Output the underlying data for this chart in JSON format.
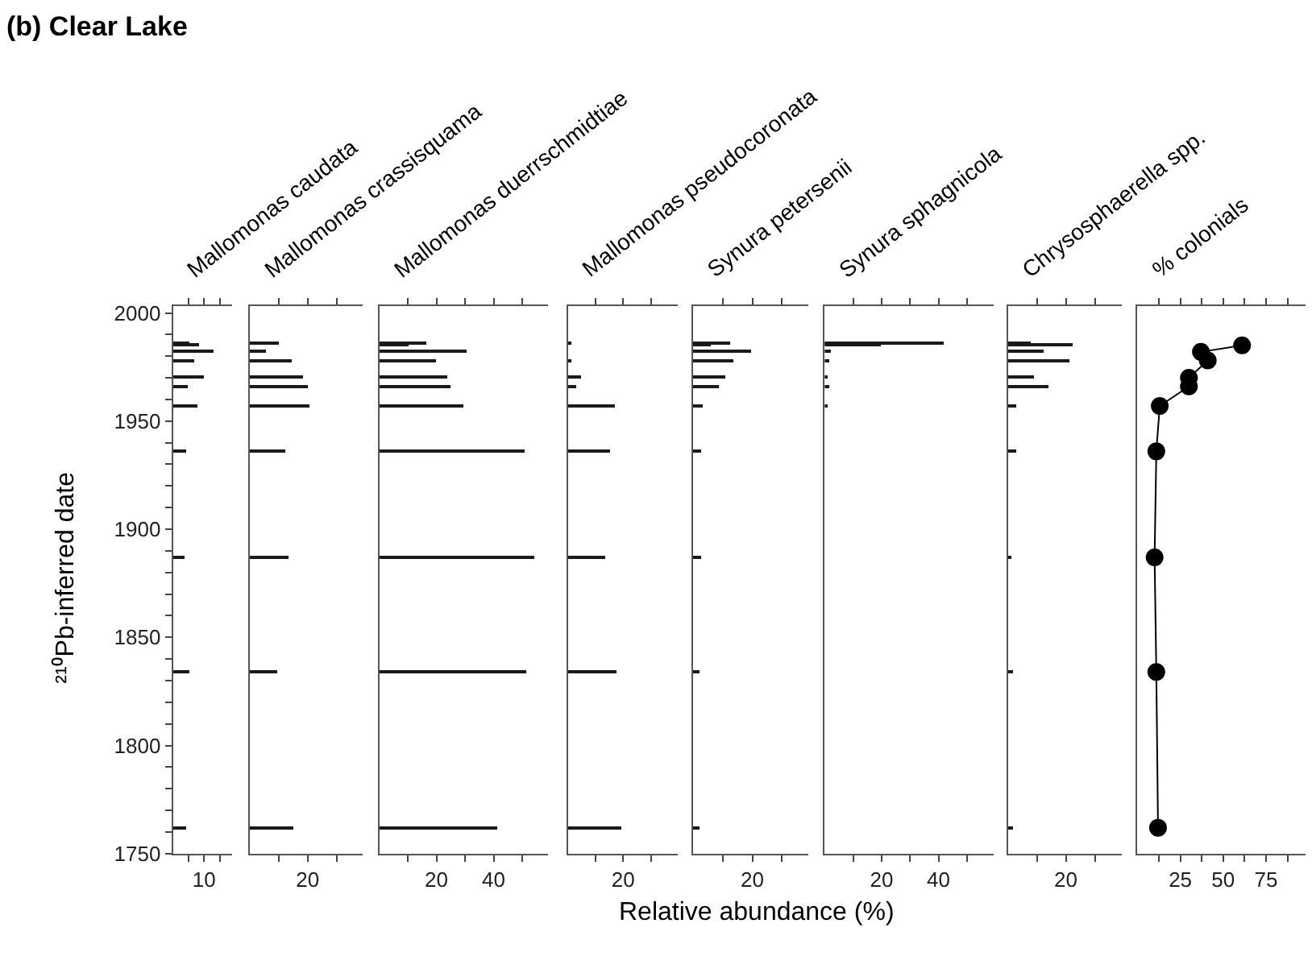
{
  "chart_data": [
    {
      "type": "bar",
      "orientation": "horizontal",
      "title": "Mallomonas caudata",
      "annotations": [
        "(b) Clear Lake"
      ],
      "ylabel": "²¹⁰Pb-inferred date",
      "x": [
        1986,
        1985,
        1982,
        1978,
        1970,
        1966,
        1957,
        1936,
        1887,
        1834,
        1762
      ],
      "values": [
        5.2,
        8.2,
        12.9,
        6.9,
        9.6,
        4.8,
        7.9,
        4.1,
        3.5,
        5.2,
        4.0
      ],
      "color": "#1a1a1a",
      "xlim": [
        0,
        19
      ],
      "xticks": [
        {
          "value": 5,
          "label": null
        },
        10,
        {
          "value": 15,
          "label": null
        }
      ],
      "ylim": [
        1750,
        2003
      ],
      "yticks": [
        1750,
        {
          "value": 1760,
          "label": null
        },
        {
          "value": 1770,
          "label": null
        },
        {
          "value": 1780,
          "label": null
        },
        {
          "value": 1790,
          "label": null
        },
        1800,
        {
          "value": 1810,
          "label": null
        },
        {
          "value": 1820,
          "label": null
        },
        {
          "value": 1830,
          "label": null
        },
        {
          "value": 1840,
          "label": null
        },
        1850,
        {
          "value": 1860,
          "label": null
        },
        {
          "value": 1870,
          "label": null
        },
        {
          "value": 1880,
          "label": null
        },
        {
          "value": 1890,
          "label": null
        },
        1900,
        {
          "value": 1910,
          "label": null
        },
        {
          "value": 1920,
          "label": null
        },
        {
          "value": 1930,
          "label": null
        },
        {
          "value": 1940,
          "label": null
        },
        1950,
        {
          "value": 1960,
          "label": null
        },
        {
          "value": 1970,
          "label": null
        },
        {
          "value": 1980,
          "label": null
        },
        {
          "value": 1990,
          "label": null
        },
        2000
      ]
    },
    {
      "type": "bar",
      "orientation": "horizontal",
      "title": "Mallomonas crassisquama",
      "x": [
        1986,
        1985,
        1982,
        1978,
        1970,
        1966,
        1957,
        1936,
        1887,
        1834,
        1762
      ],
      "values": [
        9.9,
        null,
        5.8,
        14.7,
        18.5,
        20.2,
        20.6,
        12.2,
        13.2,
        9.7,
        15.3
      ],
      "color": "#1a1a1a",
      "xlim": [
        0,
        39
      ],
      "xticks": [
        {
          "value": 10,
          "label": null
        },
        20,
        {
          "value": 30,
          "label": null
        }
      ],
      "ylim": [
        1750,
        2003
      ],
      "tick_labels": "x"
    },
    {
      "type": "bar",
      "orientation": "horizontal",
      "title": "Mallomonas duerrschmidtiae",
      "x": [
        1986,
        1985,
        1982,
        1978,
        1970,
        1966,
        1957,
        1936,
        1887,
        1834,
        1762
      ],
      "values": [
        16.1,
        10.1,
        30.3,
        19.8,
        23.5,
        24.7,
        29.1,
        50.6,
        54.0,
        51.2,
        41.3
      ],
      "color": "#1a1a1a",
      "xlim": [
        0,
        59
      ],
      "xticks": [
        {
          "value": 10,
          "label": null
        },
        20,
        {
          "value": 30,
          "label": null
        },
        40,
        {
          "value": 50,
          "label": null
        }
      ],
      "ylim": [
        1750,
        2003
      ],
      "tick_labels": "x"
    },
    {
      "type": "bar",
      "orientation": "horizontal",
      "title": "Mallomonas pseudocoronata",
      "x": [
        1986,
        1985,
        1982,
        1978,
        1970,
        1966,
        1957,
        1936,
        1887,
        1834,
        1762
      ],
      "values": [
        1.0,
        null,
        null,
        1.0,
        4.9,
        3.1,
        16.7,
        15.1,
        13.2,
        17.4,
        19.4
      ],
      "color": "#1a1a1a",
      "xlim": [
        0,
        39.8
      ],
      "xticks": [
        {
          "value": 10,
          "label": null
        },
        20,
        {
          "value": 30,
          "label": null
        }
      ],
      "ylim": [
        1750,
        2003
      ],
      "tick_labels": "x"
    },
    {
      "type": "bar",
      "orientation": "horizontal",
      "title": "Synura petersenii",
      "xlabel": "Relative abundance (%)",
      "x": [
        1986,
        1985,
        1982,
        1978,
        1970,
        1966,
        1957,
        1936,
        1887,
        1834,
        1762
      ],
      "values": [
        12.7,
        5.8,
        19.5,
        13.7,
        10.9,
        8.6,
        3.3,
        2.9,
        2.7,
        2.2,
        2.2
      ],
      "color": "#1a1a1a",
      "xlim": [
        0,
        39
      ],
      "xticks": [
        {
          "value": 10,
          "label": null
        },
        20,
        {
          "value": 30,
          "label": null
        }
      ],
      "ylim": [
        1750,
        2003
      ],
      "tick_labels": "x"
    },
    {
      "type": "bar",
      "orientation": "horizontal",
      "title": "Synura sphagnicola",
      "x": [
        1986,
        1985,
        1982,
        1978,
        1970,
        1966,
        1957
      ],
      "values": [
        42.1,
        19.8,
        2.0,
        1.5,
        1.2,
        1.9,
        1.0
      ],
      "color": "#1a1a1a",
      "xlim": [
        0,
        59.5
      ],
      "xticks": [
        {
          "value": 10,
          "label": null
        },
        20,
        {
          "value": 30,
          "label": null
        },
        40,
        {
          "value": 50,
          "label": null
        }
      ],
      "ylim": [
        1750,
        2003
      ],
      "tick_labels": "x"
    },
    {
      "type": "bar",
      "orientation": "horizontal",
      "title": "Chrysosphaerella spp.",
      "x": [
        1986,
        1985,
        1982,
        1978,
        1970,
        1966,
        1957,
        1936,
        1887,
        1834,
        1762
      ],
      "values": [
        7.6,
        22.4,
        12.2,
        20.9,
        9.1,
        14.1,
        2.6,
        3.0,
        0.6,
        1.9,
        1.9
      ],
      "color": "#1a1a1a",
      "xlim": [
        0,
        39.3
      ],
      "xticks": [
        {
          "value": 10,
          "label": null
        },
        20,
        {
          "value": 30,
          "label": null
        }
      ],
      "ylim": [
        1750,
        2003
      ],
      "tick_labels": "x"
    },
    {
      "type": "line",
      "orientation": "horizontal",
      "marker": "circle",
      "title": "% colonials",
      "x": [
        1985,
        1982,
        1978,
        1970,
        1966,
        1957,
        1936,
        1887,
        1834,
        1762
      ],
      "values": [
        61,
        37,
        41,
        30,
        30,
        13,
        11,
        10,
        11,
        12
      ],
      "color": "#000000",
      "xlim": [
        0,
        98
      ],
      "xticks": [
        {
          "value": 12.5,
          "label": null
        },
        25,
        {
          "value": 37.5,
          "label": null
        },
        50,
        {
          "value": 62.5,
          "label": null
        },
        75,
        {
          "value": 87.5,
          "label": null
        }
      ],
      "ylim": [
        1750,
        2003
      ],
      "tick_labels": "x"
    }
  ]
}
